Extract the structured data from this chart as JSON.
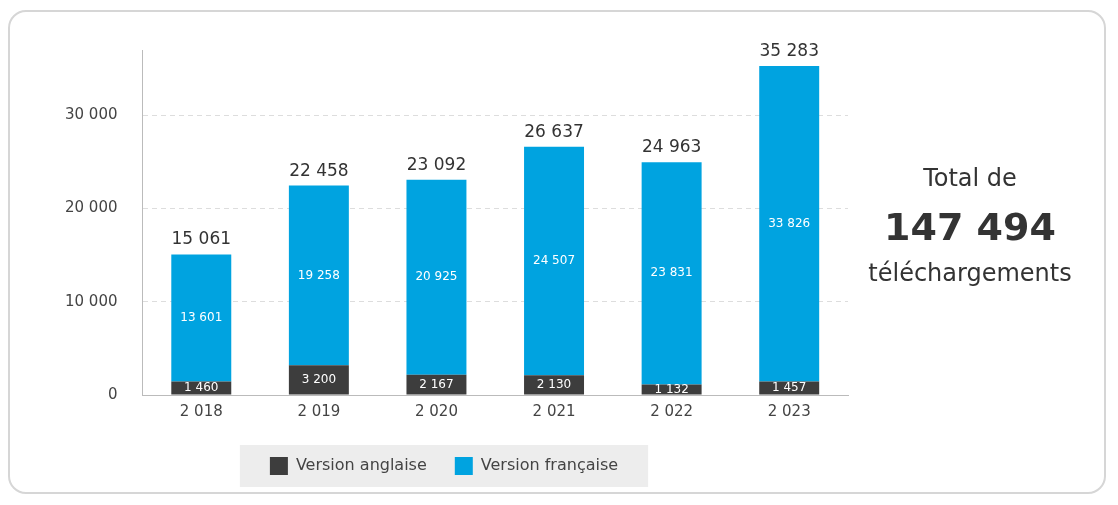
{
  "chart_data": {
    "type": "bar",
    "stacked": true,
    "categories": [
      "2 018",
      "2 019",
      "2 020",
      "2 021",
      "2 022",
      "2 023"
    ],
    "series": [
      {
        "name": "Version anglaise",
        "color": "#3d3d3d",
        "values": [
          1460,
          3200,
          2167,
          2130,
          1132,
          1457
        ],
        "value_labels": [
          "1 460",
          "3 200",
          "2 167",
          "2 130",
          "1 132",
          "1 457"
        ]
      },
      {
        "name": "Version française",
        "color": "#00a3e0",
        "values": [
          13601,
          19258,
          20925,
          24507,
          23831,
          33826
        ],
        "value_labels": [
          "13 601",
          "19 258",
          "20 925",
          "24 507",
          "23 831",
          "33 826"
        ]
      }
    ],
    "totals": [
      "15 061",
      "22 458",
      "23 092",
      "26 637",
      "24 963",
      "35 283"
    ],
    "ylim": [
      0,
      37000
    ],
    "yticks": [
      0,
      {
        "value": 10000,
        "label": "10 000"
      },
      {
        "value": 20000,
        "label": "20 000"
      },
      {
        "value": 30000,
        "label": "30 000"
      }
    ],
    "grid": "y",
    "legend": "bottom",
    "annotations": [
      "Total de",
      "147 494",
      "téléchargements"
    ]
  }
}
